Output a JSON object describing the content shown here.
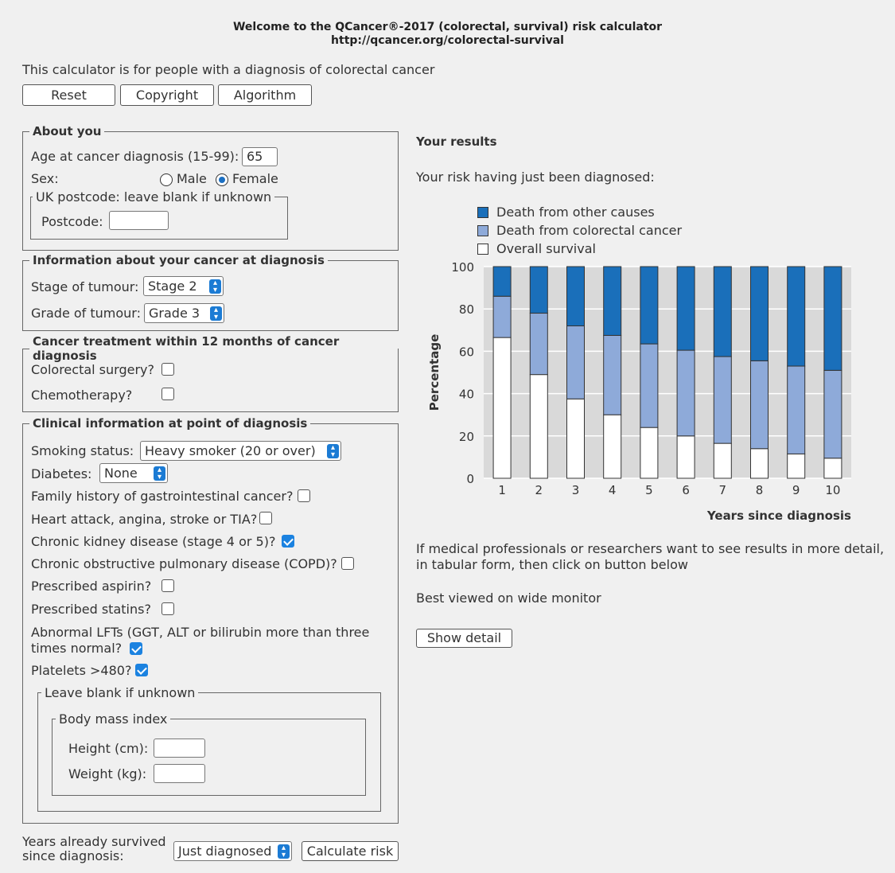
{
  "header": {
    "title": "Welcome to the QCancer®-2017 (colorectal, survival) risk calculator",
    "url": "http://qcancer.org/colorectal-survival"
  },
  "intro": "This calculator is for people with a diagnosis of colorectal cancer",
  "toolbar": {
    "reset": "Reset",
    "copyright": "Copyright",
    "algorithm": "Algorithm"
  },
  "about": {
    "legend": "About you",
    "age_label": "Age at cancer diagnosis (15-99):",
    "age_value": "65",
    "sex_label": "Sex:",
    "male": "Male",
    "female": "Female",
    "sex_selected": "Female",
    "postcode_legend": "UK postcode: leave blank if unknown",
    "postcode_label": "Postcode:",
    "postcode_value": ""
  },
  "cancer_info": {
    "legend": "Information about your cancer at diagnosis",
    "stage_label": "Stage of tumour:",
    "stage_value": "Stage 2",
    "grade_label": "Grade of tumour:",
    "grade_value": "Grade 3"
  },
  "treatment": {
    "legend": "Cancer treatment within 12 months of cancer diagnosis",
    "surgery": "Colorectal surgery?",
    "surgery_checked": false,
    "chemo": "Chemotherapy?",
    "chemo_checked": false
  },
  "clinical": {
    "legend": "Clinical information at point of diagnosis",
    "smoking_label": "Smoking status:",
    "smoking_value": "Heavy smoker (20 or over)",
    "diabetes_label": "Diabetes:",
    "diabetes_value": "None",
    "family_history": "Family history of gastrointestinal cancer?",
    "family_history_checked": false,
    "heart": "Heart attack, angina, stroke or TIA?",
    "heart_checked": false,
    "kidney": "Chronic kidney disease (stage 4 or 5)?",
    "kidney_checked": true,
    "copd": "Chronic obstructive pulmonary disease (COPD)?",
    "copd_checked": false,
    "aspirin": "Prescribed aspirin?",
    "aspirin_checked": false,
    "statins": "Prescribed statins?",
    "statins_checked": false,
    "lfts_line1": "Abnormal LFTs (GGT, ALT or bilirubin more than three",
    "lfts_line2": "times normal?",
    "lfts_checked": true,
    "platelets": "Platelets >480?",
    "platelets_checked": true,
    "blank_legend": "Leave blank if unknown",
    "bmi_legend": "Body mass index",
    "height_label": "Height (cm):",
    "height_value": "",
    "weight_label": "Weight (kg):",
    "weight_value": ""
  },
  "footer": {
    "years_label_line1": "Years already survived",
    "years_label_line2": "since diagnosis:",
    "years_value": "Just diagnosed",
    "calculate": "Calculate risk"
  },
  "results": {
    "title": "Your results",
    "subtitle": "Your risk having just been diagnosed:",
    "detail_line1": "If medical professionals or researchers want to see results in more detail,",
    "detail_line2": "in tabular form, then click on button below",
    "best_viewed": "Best viewed on wide monitor",
    "show_detail": "Show detail"
  },
  "colors": {
    "other_causes": "#1a6fba",
    "colorectal": "#8eaad9",
    "survival": "#ffffff",
    "plot_bg": "#d9d9d9",
    "accent": "#1b82e0"
  },
  "chart_data": {
    "type": "bar",
    "stacked": true,
    "categories": [
      "1",
      "2",
      "3",
      "4",
      "5",
      "6",
      "7",
      "8",
      "9",
      "10"
    ],
    "series": [
      {
        "name": "Overall survival",
        "values": [
          66.5,
          49,
          37.5,
          30,
          24,
          20,
          16.5,
          14,
          11.5,
          9.5
        ]
      },
      {
        "name": "Death from colorectal cancer",
        "values": [
          19.5,
          29,
          34.5,
          37.5,
          39.5,
          40.5,
          41,
          41.5,
          41.5,
          41.5
        ]
      },
      {
        "name": "Death from other causes",
        "values": [
          14,
          22,
          28,
          32.5,
          36.5,
          39.5,
          42.5,
          44.5,
          47,
          49
        ]
      }
    ],
    "legend_order": [
      "Death from other causes",
      "Death from colorectal cancer",
      "Overall survival"
    ],
    "xlabel": "Years since diagnosis",
    "ylabel": "Percentage",
    "ylim": [
      0,
      100
    ],
    "yticks": [
      0,
      20,
      40,
      60,
      80,
      100
    ],
    "grid": true,
    "legend_position": "top"
  }
}
